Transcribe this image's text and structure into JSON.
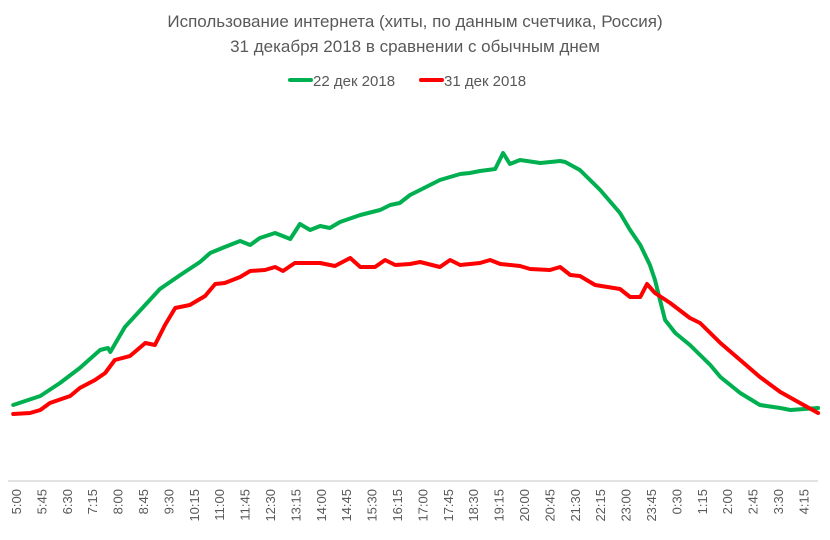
{
  "chart_data": {
    "type": "line",
    "title": [
      "Использование интернета (хиты, по данным счетчика, Россия)",
      "31 декабря 2018 в сравнении с обычным днем"
    ],
    "xlabel": "",
    "ylabel": "",
    "x_unit": "minutes after 5:00",
    "y_unit": "relative hits (no axis scale shown)",
    "tick_labels": [
      "5:00",
      "5:45",
      "6:30",
      "7:15",
      "8:00",
      "8:45",
      "9:30",
      "10:15",
      "11:00",
      "11:45",
      "12:30",
      "13:15",
      "14:00",
      "14:45",
      "15:30",
      "16:15",
      "17:00",
      "17:45",
      "18:30",
      "19:15",
      "20:00",
      "20:45",
      "21:30",
      "22:15",
      "23:00",
      "23:45",
      "0:30",
      "1:15",
      "2:00",
      "2:45",
      "3:30",
      "4:15"
    ],
    "tick_step_minutes": 45,
    "grid": false,
    "legend_position": "top",
    "series": [
      {
        "name": "22 дек 2018",
        "color": "#00b050",
        "points": [
          [
            -5,
            76
          ],
          [
            43,
            85
          ],
          [
            78,
            98
          ],
          [
            113,
            113
          ],
          [
            149,
            131
          ],
          [
            163,
            133
          ],
          [
            167,
            129
          ],
          [
            193,
            154
          ],
          [
            237,
            181
          ],
          [
            255,
            192
          ],
          [
            291,
            206
          ],
          [
            326,
            219
          ],
          [
            344,
            228
          ],
          [
            370,
            234
          ],
          [
            397,
            240
          ],
          [
            415,
            236
          ],
          [
            432,
            243
          ],
          [
            459,
            248
          ],
          [
            486,
            242
          ],
          [
            503,
            257
          ],
          [
            521,
            251
          ],
          [
            539,
            255
          ],
          [
            556,
            253
          ],
          [
            574,
            259
          ],
          [
            610,
            266
          ],
          [
            645,
            271
          ],
          [
            663,
            276
          ],
          [
            680,
            278
          ],
          [
            698,
            286
          ],
          [
            716,
            291
          ],
          [
            751,
            301
          ],
          [
            787,
            307
          ],
          [
            804,
            308
          ],
          [
            822,
            310
          ],
          [
            849,
            312
          ],
          [
            863,
            328
          ],
          [
            875,
            317
          ],
          [
            893,
            321
          ],
          [
            929,
            318
          ],
          [
            964,
            320
          ],
          [
            973,
            319
          ],
          [
            999,
            311
          ],
          [
            1035,
            291
          ],
          [
            1070,
            268
          ],
          [
            1088,
            251
          ],
          [
            1106,
            236
          ],
          [
            1123,
            216
          ],
          [
            1132,
            201
          ],
          [
            1141,
            181
          ],
          [
            1150,
            161
          ],
          [
            1168,
            148
          ],
          [
            1194,
            136
          ],
          [
            1230,
            116
          ],
          [
            1248,
            104
          ],
          [
            1283,
            88
          ],
          [
            1318,
            76
          ],
          [
            1354,
            73
          ],
          [
            1372,
            71
          ],
          [
            1421,
            73
          ]
        ]
      },
      {
        "name": "31 дек 2018",
        "color": "#ff0000",
        "points": [
          [
            -5,
            67
          ],
          [
            25,
            68
          ],
          [
            43,
            71
          ],
          [
            60,
            78
          ],
          [
            96,
            85
          ],
          [
            113,
            93
          ],
          [
            140,
            101
          ],
          [
            158,
            108
          ],
          [
            175,
            121
          ],
          [
            202,
            125
          ],
          [
            229,
            138
          ],
          [
            246,
            136
          ],
          [
            264,
            156
          ],
          [
            282,
            173
          ],
          [
            308,
            176
          ],
          [
            335,
            185
          ],
          [
            353,
            197
          ],
          [
            370,
            198
          ],
          [
            397,
            204
          ],
          [
            415,
            210
          ],
          [
            441,
            211
          ],
          [
            459,
            214
          ],
          [
            473,
            210
          ],
          [
            494,
            218
          ],
          [
            521,
            218
          ],
          [
            539,
            218
          ],
          [
            565,
            215
          ],
          [
            592,
            223
          ],
          [
            610,
            214
          ],
          [
            636,
            214
          ],
          [
            654,
            221
          ],
          [
            672,
            216
          ],
          [
            698,
            217
          ],
          [
            716,
            219
          ],
          [
            751,
            214
          ],
          [
            769,
            221
          ],
          [
            787,
            216
          ],
          [
            822,
            218
          ],
          [
            840,
            221
          ],
          [
            858,
            217
          ],
          [
            893,
            215
          ],
          [
            911,
            212
          ],
          [
            946,
            211
          ],
          [
            964,
            214
          ],
          [
            982,
            206
          ],
          [
            999,
            205
          ],
          [
            1026,
            196
          ],
          [
            1070,
            192
          ],
          [
            1088,
            184
          ],
          [
            1106,
            184
          ],
          [
            1118,
            197
          ],
          [
            1132,
            188
          ],
          [
            1159,
            178
          ],
          [
            1194,
            163
          ],
          [
            1212,
            158
          ],
          [
            1248,
            138
          ],
          [
            1283,
            121
          ],
          [
            1318,
            104
          ],
          [
            1354,
            89
          ],
          [
            1389,
            78
          ],
          [
            1421,
            68
          ]
        ]
      }
    ]
  }
}
